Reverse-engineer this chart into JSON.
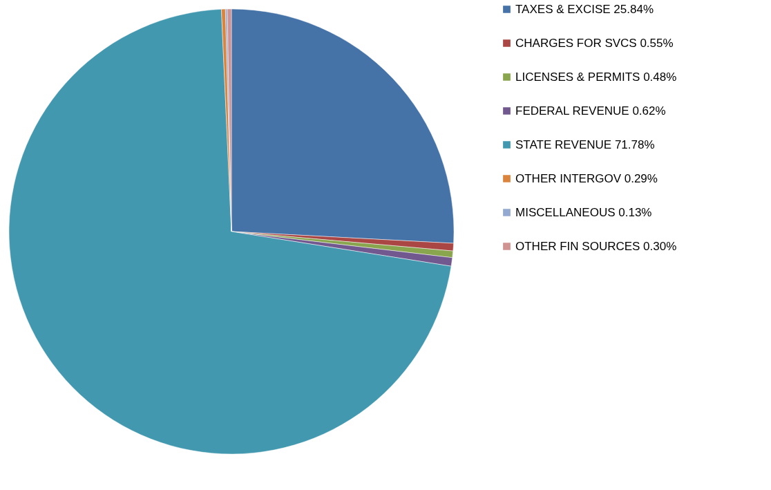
{
  "chart_data": {
    "type": "pie",
    "categories": [
      "TAXES & EXCISE 25.84%",
      "CHARGES FOR SVCS 0.55%",
      "LICENSES & PERMITS 0.48%",
      "FEDERAL REVENUE 0.62%",
      "STATE REVENUE 71.78%",
      "OTHER INTERGOV 0.29%",
      "MISCELLANEOUS 0.13%",
      "OTHER FIN SOURCES 0.30%"
    ],
    "values": [
      25.84,
      0.55,
      0.48,
      0.62,
      71.78,
      0.29,
      0.13,
      0.3
    ],
    "colors": [
      "#4572a7",
      "#aa4643",
      "#89a54e",
      "#71588f",
      "#4198af",
      "#db843d",
      "#93a9cf",
      "#d19392"
    ],
    "legend": "right"
  }
}
